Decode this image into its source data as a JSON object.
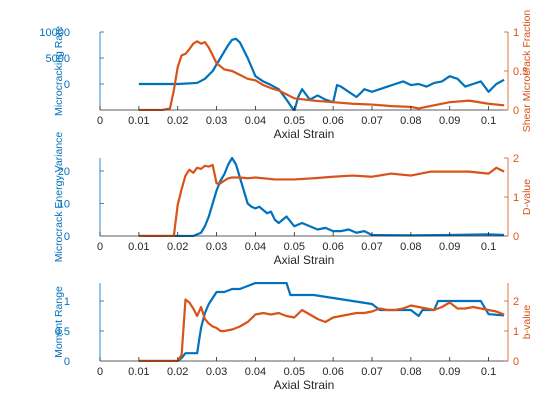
{
  "chart_data": [
    {
      "type": "line",
      "xlabel": "Axial Strain",
      "ylabel_left": "Microcracking Rate",
      "ylabel_right": "Shear Microcrack Fraction",
      "xlim": [
        0,
        0.105
      ],
      "ylim_left": [
        -5000,
        10000
      ],
      "ylim_right": [
        0,
        1
      ],
      "xticks": [
        0,
        0.01,
        0.02,
        0.03,
        0.04,
        0.05,
        0.06,
        0.07,
        0.08,
        0.09,
        0.1
      ],
      "xtick_labels": [
        "0",
        "0.01",
        "0.02",
        "0.03",
        "0.04",
        "0.05",
        "0.06",
        "0.07",
        "0.08",
        "0.09",
        "0.1"
      ],
      "yticks_left": [
        0,
        5000,
        10000
      ],
      "ytick_labels_left": [
        "0",
        "5000",
        "10000"
      ],
      "yticks_right": [
        0,
        0.5,
        1
      ],
      "ytick_labels_right": [
        "0",
        "0.5",
        "1"
      ],
      "grid": false,
      "legend": "none",
      "series": [
        {
          "axis": "left",
          "color": "#0072BD",
          "x": [
            0.01,
            0.015,
            0.02,
            0.025,
            0.027,
            0.029,
            0.031,
            0.033,
            0.034,
            0.035,
            0.036,
            0.038,
            0.04,
            0.042,
            0.044,
            0.046,
            0.048,
            0.05,
            0.051,
            0.052,
            0.054,
            0.056,
            0.058,
            0.06,
            0.061,
            0.062,
            0.064,
            0.066,
            0.067,
            0.068,
            0.07,
            0.072,
            0.074,
            0.076,
            0.078,
            0.08,
            0.082,
            0.084,
            0.086,
            0.088,
            0.09,
            0.092,
            0.094,
            0.096,
            0.098,
            0.1,
            0.102,
            0.104
          ],
          "y": [
            0,
            0,
            0,
            200,
            1000,
            2500,
            5000,
            7500,
            8500,
            8700,
            8000,
            5000,
            1500,
            500,
            -200,
            -1000,
            -3000,
            -5200,
            -2500,
            -1000,
            -3000,
            -2200,
            -3000,
            -3500,
            -200,
            -500,
            -1500,
            -2500,
            -1800,
            -1000,
            -1500,
            -1000,
            -500,
            0,
            500,
            -200,
            0,
            -500,
            200,
            500,
            1500,
            1000,
            -500,
            0,
            500,
            -1500,
            0,
            800
          ]
        },
        {
          "axis": "right",
          "color": "#D95319",
          "x": [
            0.01,
            0.012,
            0.014,
            0.016,
            0.018,
            0.019,
            0.02,
            0.021,
            0.022,
            0.023,
            0.024,
            0.025,
            0.026,
            0.027,
            0.028,
            0.029,
            0.03,
            0.032,
            0.034,
            0.036,
            0.038,
            0.04,
            0.042,
            0.044,
            0.046,
            0.048,
            0.05,
            0.055,
            0.06,
            0.065,
            0.07,
            0.075,
            0.08,
            0.082,
            0.085,
            0.09,
            0.095,
            0.1,
            0.104
          ],
          "y": [
            0,
            0,
            0,
            0,
            0.02,
            0.25,
            0.55,
            0.7,
            0.72,
            0.78,
            0.85,
            0.88,
            0.85,
            0.87,
            0.8,
            0.7,
            0.6,
            0.52,
            0.5,
            0.45,
            0.4,
            0.38,
            0.32,
            0.28,
            0.25,
            0.2,
            0.15,
            0.12,
            0.1,
            0.08,
            0.07,
            0.05,
            0.04,
            0.02,
            0.05,
            0.1,
            0.12,
            0.08,
            0.06
          ]
        }
      ]
    },
    {
      "type": "line",
      "xlabel": "Axial Strain",
      "ylabel_left": "Microcrack Energy Variance",
      "ylabel_right": "D-value",
      "xlim": [
        0,
        0.105
      ],
      "ylim_left": [
        0,
        24
      ],
      "ylim_right": [
        0,
        2
      ],
      "xticks": [
        0,
        0.01,
        0.02,
        0.03,
        0.04,
        0.05,
        0.06,
        0.07,
        0.08,
        0.09,
        0.1
      ],
      "xtick_labels": [
        "0",
        "0.01",
        "0.02",
        "0.03",
        "0.04",
        "0.05",
        "0.06",
        "0.07",
        "0.08",
        "0.09",
        "0.1"
      ],
      "yticks_left": [
        0,
        10,
        20
      ],
      "ytick_labels_left": [
        "0",
        "10",
        "20"
      ],
      "yticks_right": [
        0,
        1,
        2
      ],
      "ytick_labels_right": [
        "0",
        "1",
        "2"
      ],
      "grid": false,
      "legend": "none",
      "series": [
        {
          "axis": "left",
          "color": "#0072BD",
          "x": [
            0.01,
            0.015,
            0.02,
            0.024,
            0.026,
            0.027,
            0.028,
            0.029,
            0.03,
            0.031,
            0.032,
            0.033,
            0.034,
            0.035,
            0.036,
            0.037,
            0.038,
            0.039,
            0.04,
            0.041,
            0.042,
            0.043,
            0.044,
            0.045,
            0.046,
            0.047,
            0.048,
            0.049,
            0.05,
            0.051,
            0.052,
            0.054,
            0.056,
            0.058,
            0.06,
            0.062,
            0.064,
            0.066,
            0.068,
            0.07,
            0.08,
            0.09,
            0.1,
            0.104
          ],
          "y": [
            0,
            0,
            0,
            0,
            1,
            3,
            6,
            10,
            14,
            17,
            19,
            22,
            24,
            22,
            18,
            14,
            10,
            9,
            8.5,
            9,
            8,
            7,
            7.5,
            5,
            4,
            5,
            6,
            4.5,
            3,
            3.5,
            4,
            3,
            2,
            2.5,
            1.5,
            1.5,
            2,
            1,
            1.5,
            0.3,
            0.2,
            0.3,
            0.5,
            0.3
          ]
        },
        {
          "axis": "right",
          "color": "#D95319",
          "x": [
            0.01,
            0.015,
            0.019,
            0.0195,
            0.02,
            0.021,
            0.022,
            0.023,
            0.024,
            0.025,
            0.026,
            0.027,
            0.028,
            0.029,
            0.03,
            0.031,
            0.032,
            0.033,
            0.034,
            0.036,
            0.038,
            0.04,
            0.045,
            0.05,
            0.055,
            0.06,
            0.065,
            0.07,
            0.075,
            0.08,
            0.085,
            0.09,
            0.095,
            0.1,
            0.102,
            0.104
          ],
          "y": [
            0,
            0,
            0,
            0.4,
            0.8,
            1.2,
            1.55,
            1.7,
            1.62,
            1.75,
            1.72,
            1.8,
            1.78,
            1.82,
            1.35,
            1.35,
            1.42,
            1.48,
            1.5,
            1.5,
            1.48,
            1.5,
            1.45,
            1.45,
            1.48,
            1.52,
            1.55,
            1.52,
            1.6,
            1.55,
            1.65,
            1.65,
            1.65,
            1.6,
            1.75,
            1.65
          ]
        }
      ]
    },
    {
      "type": "line",
      "xlabel": "Axial Strain",
      "ylabel_left": "Moment Range",
      "ylabel_right": "b-value",
      "xlim": [
        0,
        0.105
      ],
      "ylim_left": [
        0,
        1.3
      ],
      "ylim_right": [
        0,
        2.6
      ],
      "xticks": [
        0,
        0.01,
        0.02,
        0.03,
        0.04,
        0.05,
        0.06,
        0.07,
        0.08,
        0.09,
        0.1
      ],
      "xtick_labels": [
        "0",
        "0.01",
        "0.02",
        "0.03",
        "0.04",
        "0.05",
        "0.06",
        "0.07",
        "0.08",
        "0.09",
        "0.1"
      ],
      "yticks_left": [
        0,
        0.5,
        1
      ],
      "ytick_labels_left": [
        "0",
        "0.5",
        "1"
      ],
      "yticks_right": [
        0,
        1,
        2
      ],
      "ytick_labels_right": [
        "0",
        "1",
        "2"
      ],
      "grid": false,
      "legend": "none",
      "series": [
        {
          "axis": "left",
          "color": "#0072BD",
          "x": [
            0.01,
            0.015,
            0.02,
            0.021,
            0.022,
            0.025,
            0.026,
            0.027,
            0.028,
            0.029,
            0.03,
            0.032,
            0.034,
            0.036,
            0.038,
            0.04,
            0.045,
            0.048,
            0.049,
            0.05,
            0.055,
            0.06,
            0.065,
            0.07,
            0.072,
            0.08,
            0.082,
            0.083,
            0.086,
            0.087,
            0.09,
            0.095,
            0.098,
            0.1,
            0.104
          ],
          "y": [
            0,
            0,
            0,
            0.05,
            0.13,
            0.13,
            0.55,
            0.8,
            0.95,
            1.05,
            1.15,
            1.15,
            1.2,
            1.2,
            1.25,
            1.3,
            1.3,
            1.3,
            1.1,
            1.1,
            1.1,
            1.05,
            1.0,
            0.95,
            0.85,
            0.85,
            0.75,
            0.85,
            0.85,
            1.0,
            1.0,
            1.0,
            1.0,
            0.78,
            0.76
          ]
        },
        {
          "axis": "right",
          "color": "#D95319",
          "x": [
            0.01,
            0.015,
            0.02,
            0.021,
            0.022,
            0.023,
            0.024,
            0.025,
            0.026,
            0.027,
            0.028,
            0.029,
            0.03,
            0.031,
            0.032,
            0.034,
            0.036,
            0.038,
            0.04,
            0.042,
            0.044,
            0.046,
            0.048,
            0.05,
            0.052,
            0.054,
            0.056,
            0.058,
            0.06,
            0.062,
            0.064,
            0.066,
            0.068,
            0.07,
            0.072,
            0.074,
            0.076,
            0.078,
            0.08,
            0.082,
            0.084,
            0.086,
            0.088,
            0.09,
            0.092,
            0.094,
            0.096,
            0.098,
            0.1,
            0.102,
            0.104
          ],
          "y": [
            0,
            0,
            0,
            0.2,
            2.05,
            1.95,
            1.75,
            1.5,
            1.8,
            1.4,
            1.25,
            1.15,
            1.1,
            1.0,
            1.0,
            1.05,
            1.15,
            1.3,
            1.55,
            1.6,
            1.55,
            1.6,
            1.5,
            1.45,
            1.7,
            1.55,
            1.4,
            1.3,
            1.45,
            1.5,
            1.55,
            1.6,
            1.6,
            1.65,
            1.75,
            1.7,
            1.7,
            1.75,
            1.85,
            1.8,
            1.75,
            1.7,
            1.8,
            1.95,
            1.75,
            1.75,
            1.8,
            1.75,
            1.7,
            1.65,
            1.55
          ]
        }
      ]
    }
  ]
}
